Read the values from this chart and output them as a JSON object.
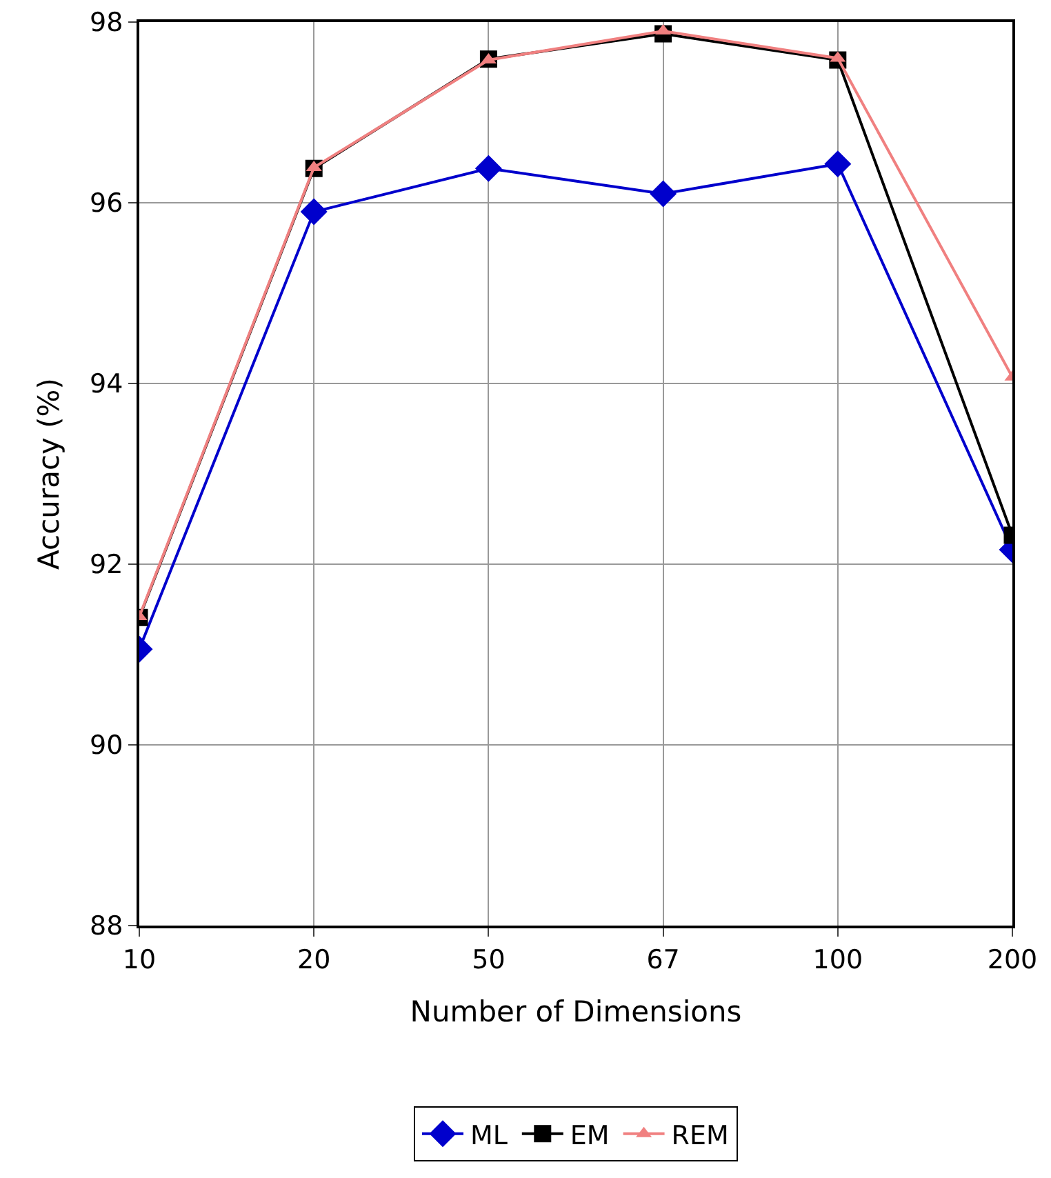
{
  "chart_data": {
    "type": "line",
    "xlabel": "Number of Dimensions",
    "ylabel": "Accuracy (%)",
    "categories": [
      "10",
      "20",
      "50",
      "67",
      "100",
      "200"
    ],
    "series": [
      {
        "name": "ML",
        "color": "#0000cc",
        "marker": "diamond",
        "values": [
          91.06,
          95.9,
          96.38,
          96.1,
          96.43,
          92.16
        ]
      },
      {
        "name": "EM",
        "color": "#000000",
        "marker": "square",
        "values": [
          91.41,
          96.38,
          97.59,
          97.87,
          97.58,
          92.32
        ]
      },
      {
        "name": "REM",
        "color": "#f08080",
        "marker": "triangle",
        "values": [
          91.42,
          96.39,
          97.58,
          97.9,
          97.6,
          94.07
        ]
      }
    ],
    "ylim": [
      88,
      98
    ],
    "yticks": [
      88,
      90,
      92,
      94,
      96,
      98
    ],
    "grid": true,
    "legend": "bottom",
    "line_style": "solid"
  }
}
